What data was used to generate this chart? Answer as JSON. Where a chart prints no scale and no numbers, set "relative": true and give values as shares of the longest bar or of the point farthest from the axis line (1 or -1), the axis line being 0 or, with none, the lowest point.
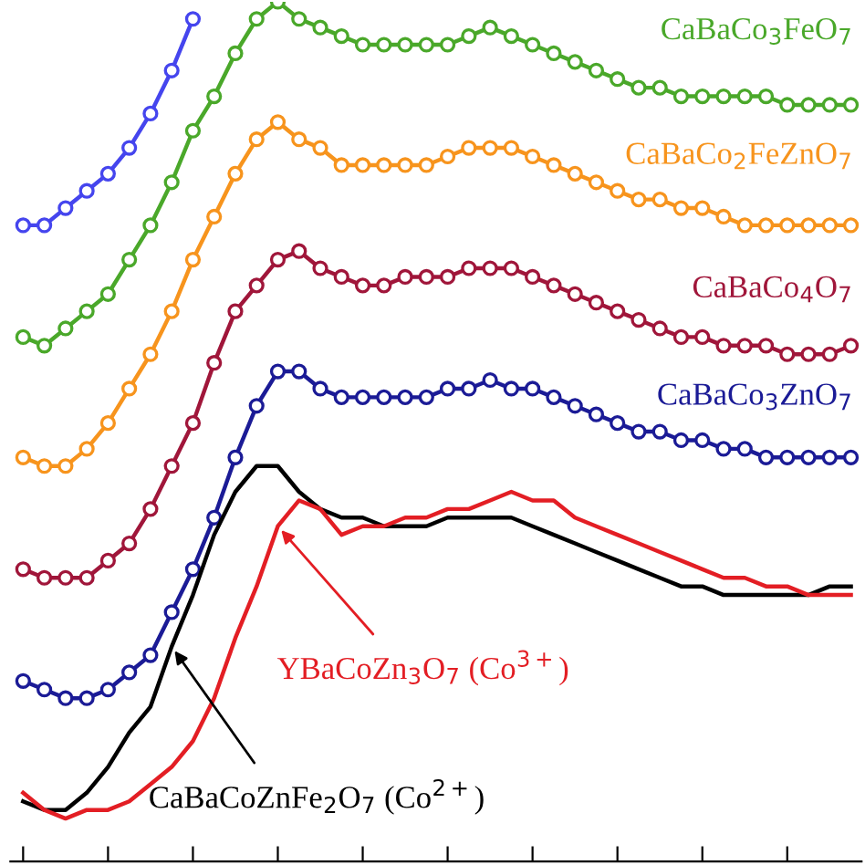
{
  "chart_data": {
    "type": "line",
    "relative": true,
    "grid": false,
    "legend": false,
    "line_style": "solid",
    "categories": [
      null,
      null,
      null,
      null,
      null,
      null,
      null,
      null,
      null,
      null,
      null,
      null,
      null,
      null,
      null,
      null,
      null,
      null,
      null,
      null,
      null,
      null,
      null,
      null,
      null,
      null,
      null,
      null,
      null,
      null,
      null,
      null,
      null,
      null,
      null,
      null,
      null,
      null,
      null,
      null
    ],
    "series": [
      {
        "color": "#4545ee",
        "marker": "circle",
        "values": [
          0.74,
          0.74,
          0.76,
          0.78,
          0.8,
          0.83,
          0.87,
          0.92,
          0.98,
          null,
          null,
          null,
          null,
          null,
          null,
          null,
          null,
          null,
          null,
          null,
          null,
          null,
          null,
          null,
          null,
          null,
          null,
          null,
          null,
          null,
          null,
          null,
          null,
          null,
          null,
          null,
          null,
          null,
          null,
          null
        ]
      },
      {
        "name": "CaBaCo$_{3}$FeO$_{7}$",
        "color": "#4aa82a",
        "marker": "circle",
        "values": [
          0.61,
          0.6,
          0.62,
          0.64,
          0.66,
          0.7,
          0.74,
          0.79,
          0.85,
          0.89,
          0.94,
          0.98,
          1.0,
          0.98,
          0.97,
          0.96,
          0.95,
          0.95,
          0.95,
          0.95,
          0.95,
          0.96,
          0.97,
          0.96,
          0.95,
          0.94,
          0.93,
          0.92,
          0.91,
          0.9,
          0.9,
          0.89,
          0.89,
          0.89,
          0.89,
          0.89,
          0.88,
          0.88,
          0.88,
          0.88
        ]
      },
      {
        "name": "CaBaCo$_{2}$FeZnO$_{7}$",
        "color": "#f7941d",
        "marker": "circle",
        "values": [
          0.47,
          0.46,
          0.46,
          0.48,
          0.51,
          0.55,
          0.59,
          0.64,
          0.7,
          0.75,
          0.8,
          0.84,
          0.86,
          0.84,
          0.83,
          0.81,
          0.81,
          0.81,
          0.81,
          0.81,
          0.82,
          0.83,
          0.83,
          0.83,
          0.82,
          0.81,
          0.8,
          0.79,
          0.78,
          0.77,
          0.77,
          0.76,
          0.76,
          0.75,
          0.74,
          0.74,
          0.74,
          0.74,
          0.74,
          0.74
        ]
      },
      {
        "name": "CaBaCo$_{4}$O$_{7}$",
        "color": "#a0163a",
        "marker": "circle",
        "values": [
          0.34,
          0.33,
          0.33,
          0.33,
          0.35,
          0.37,
          0.41,
          0.46,
          0.51,
          0.58,
          0.64,
          0.67,
          0.7,
          0.71,
          0.69,
          0.68,
          0.67,
          0.67,
          0.68,
          0.68,
          0.68,
          0.69,
          0.69,
          0.69,
          0.68,
          0.67,
          0.66,
          0.65,
          0.64,
          0.63,
          0.62,
          0.61,
          0.61,
          0.6,
          0.6,
          0.6,
          0.59,
          0.59,
          0.59,
          0.6
        ]
      },
      {
        "name": "CaBaCo$_{3}$ZnO$_{7}$",
        "color": "#1b1b96",
        "marker": "circle",
        "values": [
          0.21,
          0.2,
          0.19,
          0.19,
          0.2,
          0.22,
          0.24,
          0.29,
          0.34,
          0.4,
          0.47,
          0.53,
          0.57,
          0.57,
          0.55,
          0.54,
          0.54,
          0.54,
          0.54,
          0.54,
          0.55,
          0.55,
          0.56,
          0.55,
          0.55,
          0.54,
          0.53,
          0.52,
          0.51,
          0.5,
          0.5,
          0.49,
          0.49,
          0.48,
          0.48,
          0.47,
          0.47,
          0.47,
          0.47,
          0.47
        ]
      },
      {
        "name": "CaBaCoZnFe$_{2}$O$_{7}$ (Co$^{2+}$)",
        "color": "#000000",
        "marker": "none",
        "values": [
          0.07,
          0.06,
          0.06,
          0.08,
          0.11,
          0.15,
          0.18,
          0.25,
          0.31,
          0.38,
          0.43,
          0.46,
          0.46,
          0.43,
          0.41,
          0.4,
          0.4,
          0.39,
          0.39,
          0.39,
          0.4,
          0.4,
          0.4,
          0.4,
          0.39,
          0.38,
          0.37,
          0.36,
          0.35,
          0.34,
          0.33,
          0.32,
          0.32,
          0.31,
          0.31,
          0.31,
          0.31,
          0.31,
          0.32,
          0.32
        ]
      },
      {
        "name": "YBaCoZn$_{3}$O$_{7}$ (Co$^{3+}$)",
        "color": "#e31e24",
        "marker": "none",
        "values": [
          0.08,
          0.06,
          0.05,
          0.06,
          0.06,
          0.07,
          0.09,
          0.11,
          0.14,
          0.19,
          0.26,
          0.32,
          0.39,
          0.42,
          0.41,
          0.38,
          0.39,
          0.39,
          0.4,
          0.4,
          0.41,
          0.41,
          0.42,
          0.43,
          0.42,
          0.42,
          0.4,
          0.39,
          0.38,
          0.37,
          0.36,
          0.35,
          0.34,
          0.33,
          0.33,
          0.32,
          0.32,
          0.31,
          0.31,
          0.31
        ]
      }
    ]
  }
}
